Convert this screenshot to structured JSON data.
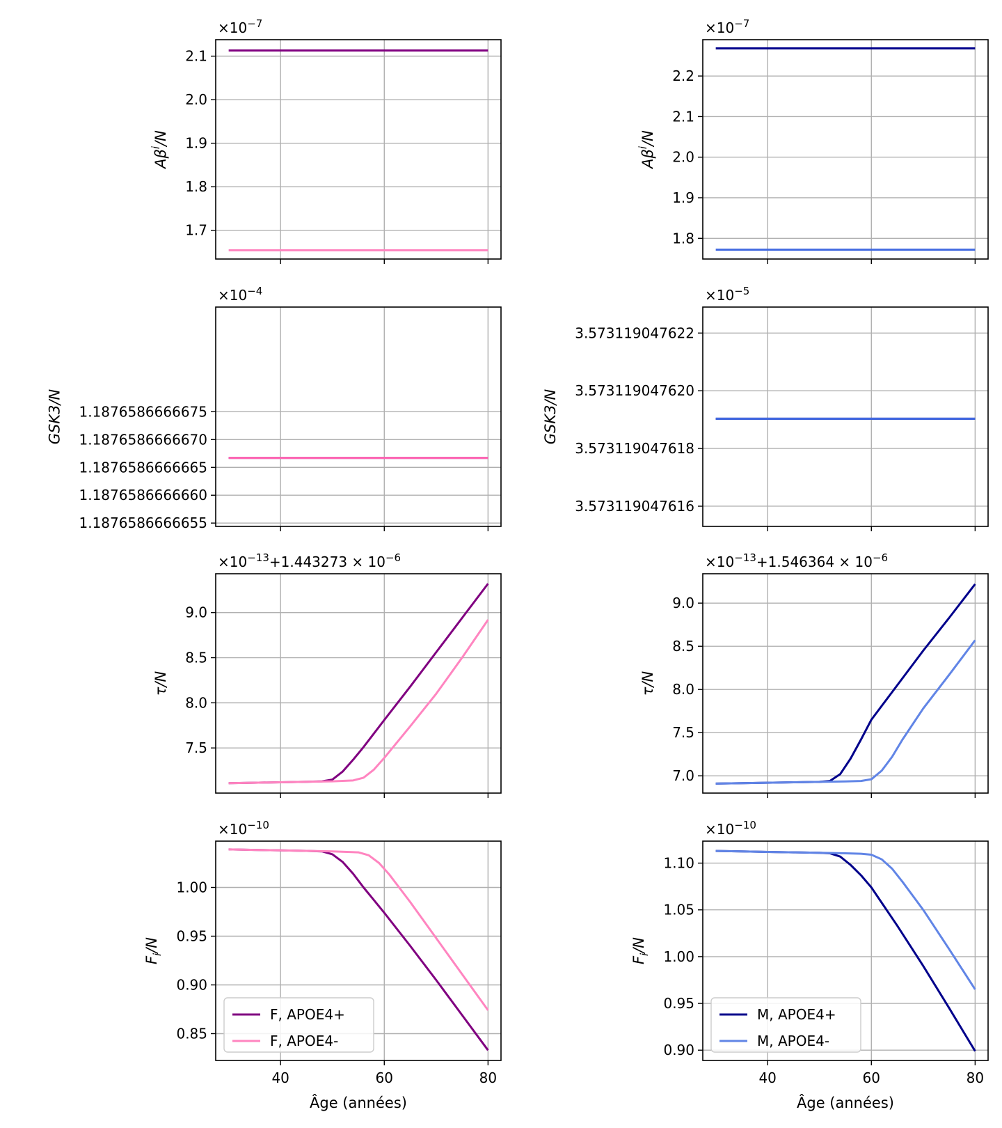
{
  "xlabel": "Âge (années)",
  "chart_data": [
    {
      "type": "line",
      "ylabel": "Aβⁱ/N",
      "ylabel_parts": [
        "A",
        "β",
        "i",
        "/N"
      ],
      "exponent_text": "×10",
      "exponent_sup": "−7",
      "xlim": [
        27.5,
        82.5
      ],
      "ylim": [
        1.634,
        2.1378
      ],
      "xticks": [
        40,
        60,
        80
      ],
      "xtick_labels": [
        "40",
        "60",
        "80"
      ],
      "yticks": [
        1.7,
        1.8,
        1.9,
        2.0,
        2.1
      ],
      "ytick_labels": [
        "1.7",
        "1.8",
        "1.9",
        "2.0",
        "2.1"
      ],
      "grid": true,
      "series": [
        {
          "name": "F, APOE4+",
          "color": "#800080",
          "x": [
            30,
            80
          ],
          "y": [
            2.113,
            2.113
          ]
        },
        {
          "name": "F, APOE4-",
          "color": "#ff85c0",
          "x": [
            30,
            80
          ],
          "y": [
            1.654,
            1.654
          ]
        }
      ]
    },
    {
      "type": "line",
      "ylabel": "Aβⁱ/N",
      "ylabel_parts": [
        "A",
        "β",
        "i",
        "/N"
      ],
      "exponent_text": "×10",
      "exponent_sup": "−7",
      "xlim": [
        27.5,
        82.5
      ],
      "ylim": [
        1.749,
        2.2895
      ],
      "xticks": [
        40,
        60,
        80
      ],
      "xtick_labels": [
        "40",
        "60",
        "80"
      ],
      "yticks": [
        1.8,
        1.9,
        2.0,
        2.1,
        2.2
      ],
      "ytick_labels": [
        "1.8",
        "1.9",
        "2.0",
        "2.1",
        "2.2"
      ],
      "grid": true,
      "series": [
        {
          "name": "M, APOE4+",
          "color": "#00008b",
          "x": [
            30,
            80
          ],
          "y": [
            2.268,
            2.268
          ]
        },
        {
          "name": "M, APOE4-",
          "color": "#4169e1",
          "x": [
            30,
            80
          ],
          "y": [
            1.772,
            1.772
          ]
        }
      ]
    },
    {
      "type": "line",
      "ylabel": "GSK3/N",
      "ylabel_parts": [
        "GSK3/N"
      ],
      "exponent_text": "×10",
      "exponent_sup": "−4",
      "xlim": [
        27.5,
        82.5
      ],
      "ylim": [
        5.44,
        9.38
      ],
      "xticks": [
        40,
        60,
        80
      ],
      "xtick_labels": [
        "40",
        "60",
        "80"
      ],
      "yticks": [
        5.5,
        6.0,
        6.5,
        7.0,
        7.5
      ],
      "ytick_labels": [
        "1.1876586666655",
        "1.1876586666660",
        "1.1876586666665",
        "1.1876586666670",
        "1.1876586666675"
      ],
      "grid": true,
      "series": [
        {
          "name": "F, APOE4+",
          "color": "#800080",
          "x": [
            30,
            80
          ],
          "y": [
            6.67,
            6.67
          ]
        },
        {
          "name": "F, APOE4-",
          "color": "#ff69b4",
          "x": [
            30,
            80
          ],
          "y": [
            6.67,
            6.67
          ]
        }
      ]
    },
    {
      "type": "line",
      "ylabel": "GSK3/N",
      "ylabel_parts": [
        "GSK3/N"
      ],
      "exponent_text": "×10",
      "exponent_sup": "−5",
      "xlim": [
        27.5,
        82.5
      ],
      "ylim": [
        1.53,
        2.29
      ],
      "xticks": [
        40,
        60,
        80
      ],
      "xtick_labels": [
        "40",
        "60",
        "80"
      ],
      "yticks": [
        1.6,
        1.8,
        2.0,
        2.2
      ],
      "ytick_labels": [
        "3.573119047616",
        "3.573119047618",
        "3.573119047620",
        "3.573119047622"
      ],
      "grid": true,
      "series": [
        {
          "name": "M, APOE4+",
          "color": "#00008b",
          "x": [
            30,
            80
          ],
          "y": [
            1.903,
            1.903
          ]
        },
        {
          "name": "M, APOE4-",
          "color": "#4169e1",
          "x": [
            30,
            80
          ],
          "y": [
            1.903,
            1.903
          ]
        }
      ]
    },
    {
      "type": "line",
      "ylabel": "τ/N",
      "ylabel_parts": [
        "τ/N"
      ],
      "exponent_text": "×10",
      "exponent_sup": "−13",
      "offset_text": "+1.443273 × 10",
      "offset_sup": "−6",
      "xlim": [
        27.5,
        82.5
      ],
      "ylim": [
        7.0,
        9.43
      ],
      "xticks": [
        40,
        60,
        80
      ],
      "xtick_labels": [
        "40",
        "60",
        "80"
      ],
      "yticks": [
        7.5,
        8.0,
        8.5,
        9.0
      ],
      "ytick_labels": [
        "7.5",
        "8.0",
        "8.5",
        "9.0"
      ],
      "grid": true,
      "series": [
        {
          "name": "F, APOE4+",
          "color": "#800080",
          "x": [
            30,
            35,
            40,
            45,
            48,
            50,
            52,
            54,
            56,
            58,
            60,
            65,
            70,
            75,
            80
          ],
          "y": [
            7.11,
            7.115,
            7.12,
            7.125,
            7.13,
            7.15,
            7.24,
            7.37,
            7.51,
            7.66,
            7.81,
            8.18,
            8.56,
            8.94,
            9.32
          ]
        },
        {
          "name": "F, APOE4-",
          "color": "#ff85c0",
          "x": [
            30,
            35,
            40,
            45,
            50,
            54,
            56,
            58,
            60,
            62,
            65,
            70,
            75,
            80
          ],
          "y": [
            7.11,
            7.115,
            7.12,
            7.125,
            7.13,
            7.14,
            7.17,
            7.26,
            7.39,
            7.53,
            7.74,
            8.1,
            8.5,
            8.92
          ]
        }
      ]
    },
    {
      "type": "line",
      "ylabel": "τ/N",
      "ylabel_parts": [
        "τ/N"
      ],
      "exponent_text": "×10",
      "exponent_sup": "−13",
      "offset_text": "+1.546364 × 10",
      "offset_sup": "−6",
      "xlim": [
        27.5,
        82.5
      ],
      "ylim": [
        6.8,
        9.34
      ],
      "xticks": [
        40,
        60,
        80
      ],
      "xtick_labels": [
        "40",
        "60",
        "80"
      ],
      "yticks": [
        7.0,
        7.5,
        8.0,
        8.5,
        9.0
      ],
      "ytick_labels": [
        "7.0",
        "7.5",
        "8.0",
        "8.5",
        "9.0"
      ],
      "grid": true,
      "series": [
        {
          "name": "M, APOE4+",
          "color": "#00008b",
          "x": [
            30,
            35,
            40,
            45,
            50,
            52,
            54,
            56,
            58,
            60,
            65,
            70,
            75,
            80
          ],
          "y": [
            6.91,
            6.915,
            6.92,
            6.925,
            6.93,
            6.94,
            7.02,
            7.2,
            7.42,
            7.65,
            8.05,
            8.45,
            8.83,
            9.22
          ]
        },
        {
          "name": "M, APOE4-",
          "color": "#6185e6",
          "x": [
            30,
            35,
            40,
            45,
            50,
            55,
            58,
            60,
            62,
            64,
            66,
            70,
            75,
            80
          ],
          "y": [
            6.91,
            6.915,
            6.92,
            6.925,
            6.93,
            6.935,
            6.94,
            6.96,
            7.06,
            7.22,
            7.42,
            7.78,
            8.17,
            8.57
          ]
        }
      ]
    },
    {
      "type": "line",
      "ylabel": "Fᵢ/N",
      "ylabel_parts": [
        "F",
        "i",
        "/N"
      ],
      "exponent_text": "×10",
      "exponent_sup": "−10",
      "xlim": [
        27.5,
        82.5
      ],
      "ylim": [
        0.8225,
        1.0475
      ],
      "xticks": [
        40,
        60,
        80
      ],
      "xtick_labels": [
        "40",
        "60",
        "80"
      ],
      "yticks": [
        0.85,
        0.9,
        0.95,
        1.0
      ],
      "ytick_labels": [
        "0.85",
        "0.90",
        "0.95",
        "1.00"
      ],
      "grid": true,
      "legend": "lower-left",
      "series": [
        {
          "name": "F, APOE4+",
          "color": "#800080",
          "x": [
            30,
            35,
            40,
            45,
            48,
            50,
            52,
            54,
            56,
            58,
            60,
            65,
            70,
            75,
            80
          ],
          "y": [
            1.039,
            1.0385,
            1.038,
            1.0375,
            1.037,
            1.034,
            1.026,
            1.014,
            1.0,
            0.987,
            0.974,
            0.94,
            0.905,
            0.869,
            0.833
          ]
        },
        {
          "name": "F, APOE4-",
          "color": "#ff85c0",
          "x": [
            30,
            35,
            40,
            45,
            50,
            55,
            57,
            59,
            61,
            63,
            65,
            70,
            75,
            80
          ],
          "y": [
            1.039,
            1.0385,
            1.038,
            1.0375,
            1.037,
            1.036,
            1.033,
            1.025,
            1.013,
            0.999,
            0.985,
            0.948,
            0.911,
            0.874
          ]
        }
      ]
    },
    {
      "type": "line",
      "ylabel": "Fᵢ/N",
      "ylabel_parts": [
        "F",
        "i",
        "/N"
      ],
      "exponent_text": "×10",
      "exponent_sup": "−10",
      "xlim": [
        27.5,
        82.5
      ],
      "ylim": [
        0.889,
        1.1235
      ],
      "xticks": [
        40,
        60,
        80
      ],
      "xtick_labels": [
        "40",
        "60",
        "80"
      ],
      "yticks": [
        0.9,
        0.95,
        1.0,
        1.05,
        1.1
      ],
      "ytick_labels": [
        "0.90",
        "0.95",
        "1.00",
        "1.05",
        "1.10"
      ],
      "grid": true,
      "legend": "lower-left",
      "series": [
        {
          "name": "M, APOE4+",
          "color": "#00008b",
          "x": [
            30,
            35,
            40,
            45,
            50,
            52,
            54,
            56,
            58,
            60,
            65,
            70,
            75,
            80
          ],
          "y": [
            1.113,
            1.1125,
            1.112,
            1.1115,
            1.111,
            1.1105,
            1.107,
            1.098,
            1.087,
            1.074,
            1.033,
            0.99,
            0.945,
            0.899
          ]
        },
        {
          "name": "M, APOE4-",
          "color": "#6185e6",
          "x": [
            30,
            35,
            40,
            45,
            50,
            55,
            58,
            60,
            62,
            64,
            66,
            70,
            75,
            80
          ],
          "y": [
            1.113,
            1.1125,
            1.112,
            1.1115,
            1.111,
            1.1105,
            1.11,
            1.109,
            1.104,
            1.094,
            1.08,
            1.05,
            1.008,
            0.965
          ]
        }
      ]
    }
  ]
}
